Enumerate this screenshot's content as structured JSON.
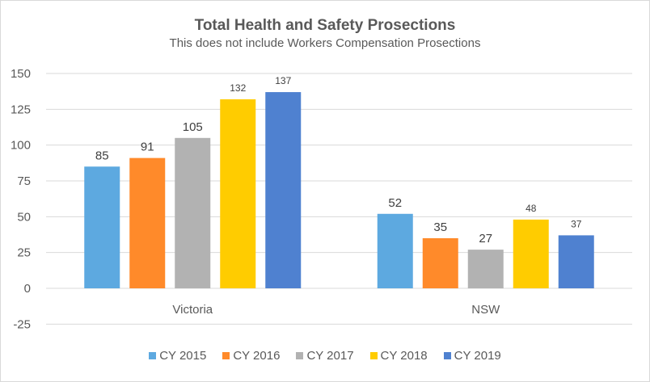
{
  "chart_data": {
    "type": "bar",
    "title": "Total Health and Safety Prosections",
    "subtitle": "This does not include Workers Compensation  Prosections",
    "xlabel": "",
    "ylabel": "",
    "categories": [
      "Victoria",
      "NSW"
    ],
    "series": [
      {
        "name": "CY 2015",
        "color": "#5DA9E0",
        "values": [
          85,
          52
        ]
      },
      {
        "name": "CY 2016",
        "color": "#FF8A2A",
        "values": [
          91,
          35
        ]
      },
      {
        "name": "CY 2017",
        "color": "#B2B2B2",
        "values": [
          105,
          27
        ]
      },
      {
        "name": "CY 2018",
        "color": "#FFCC00",
        "values": [
          132,
          48
        ]
      },
      {
        "name": "CY 2019",
        "color": "#4F81D0",
        "values": [
          137,
          37
        ]
      }
    ],
    "data_labels_small": [
      [
        false,
        false
      ],
      [
        false,
        false
      ],
      [
        false,
        false
      ],
      [
        true,
        true
      ],
      [
        true,
        true
      ]
    ],
    "ylim": [
      -25,
      150
    ],
    "yticks": [
      150,
      125,
      100,
      75,
      50,
      25,
      0,
      -25
    ],
    "grid": true,
    "legend_position": "bottom"
  }
}
